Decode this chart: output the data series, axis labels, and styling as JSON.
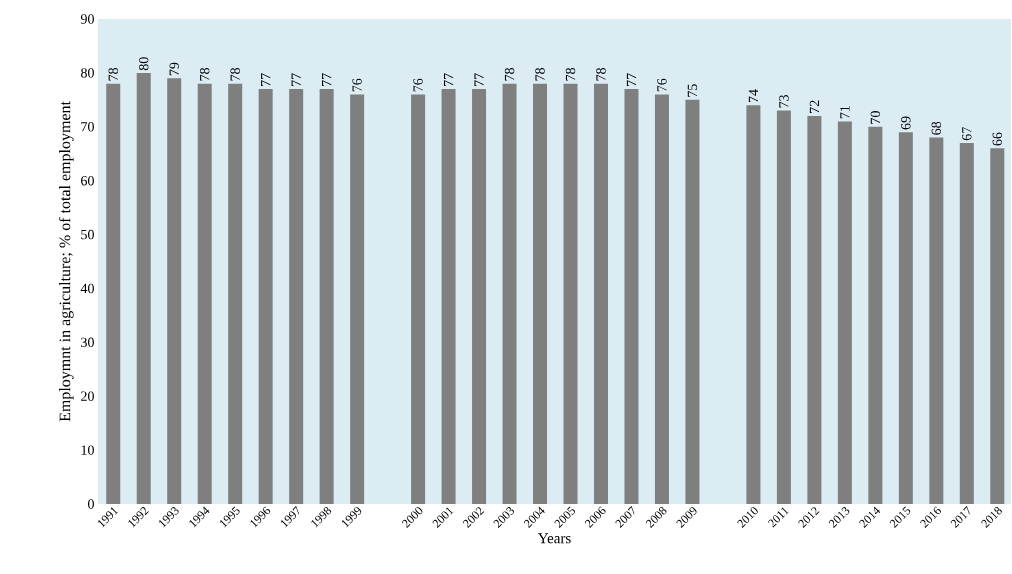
{
  "chart_data": {
    "type": "bar",
    "xlabel": "Years",
    "ylabel": "Employmnt in agriculture; % of total employment",
    "categories": [
      "1991",
      "1992",
      "1993",
      "1994",
      "1995",
      "1996",
      "1997",
      "1998",
      "1999",
      null,
      "2000",
      "2001",
      "2002",
      "2003",
      "2004",
      "2005",
      "2006",
      "2007",
      "2008",
      "2009",
      null,
      "2010",
      "2011",
      "2012",
      "2013",
      "2014",
      "2015",
      "2016",
      "2017",
      "2018"
    ],
    "values": [
      78,
      80,
      79,
      78,
      78,
      77,
      77,
      77,
      76,
      null,
      76,
      77,
      77,
      78,
      78,
      78,
      78,
      77,
      76,
      75,
      null,
      74,
      73,
      72,
      71,
      70,
      69,
      68,
      67,
      66
    ],
    "color": "#7f7f7f",
    "ylim": [
      0,
      90
    ],
    "yticks": [
      0,
      10,
      20,
      30,
      40,
      50,
      60,
      70,
      80,
      90
    ],
    "data_labels": true,
    "grid": false
  }
}
